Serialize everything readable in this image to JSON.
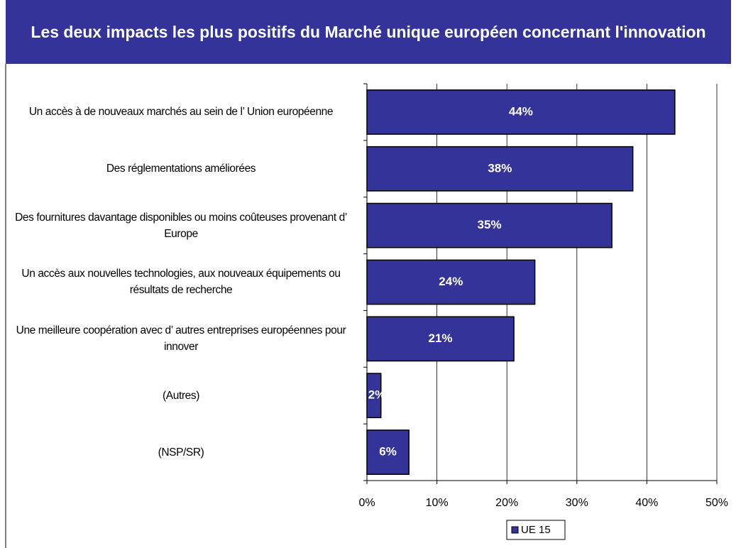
{
  "chart_data": {
    "type": "bar",
    "orientation": "horizontal",
    "title": "Les deux impacts les plus positifs du Marché unique européen concernant l'innovation",
    "categories": [
      "Un accès à de nouveaux marchés au sein de l’ Union européenne",
      "Des réglementations améliorées",
      "Des fournitures davantage disponibles ou moins coûteuses provenant d’ Europe",
      "Un accès aux nouvelles technologies, aux nouveaux équipements ou résultats de recherche",
      "Une meilleure coopération avec d’ autres entreprises européennes pour innover",
      "(Autres)",
      "(NSP/SR)"
    ],
    "series": [
      {
        "name": "UE 15",
        "color": "#333399",
        "values": [
          44,
          38,
          35,
          24,
          21,
          2,
          6
        ],
        "value_labels": [
          "44%",
          "38%",
          "35%",
          "24%",
          "21%",
          "2%",
          "6%"
        ]
      }
    ],
    "xlim": [
      0,
      50
    ],
    "xticks": [
      {
        "value": 0,
        "label": "0%"
      },
      {
        "value": 10,
        "label": "10%"
      },
      {
        "value": 20,
        "label": "20%"
      },
      {
        "value": 30,
        "label": "30%"
      },
      {
        "value": 40,
        "label": "40%"
      },
      {
        "value": 50,
        "label": "50%"
      }
    ],
    "grid": true,
    "legend": "bottom"
  }
}
